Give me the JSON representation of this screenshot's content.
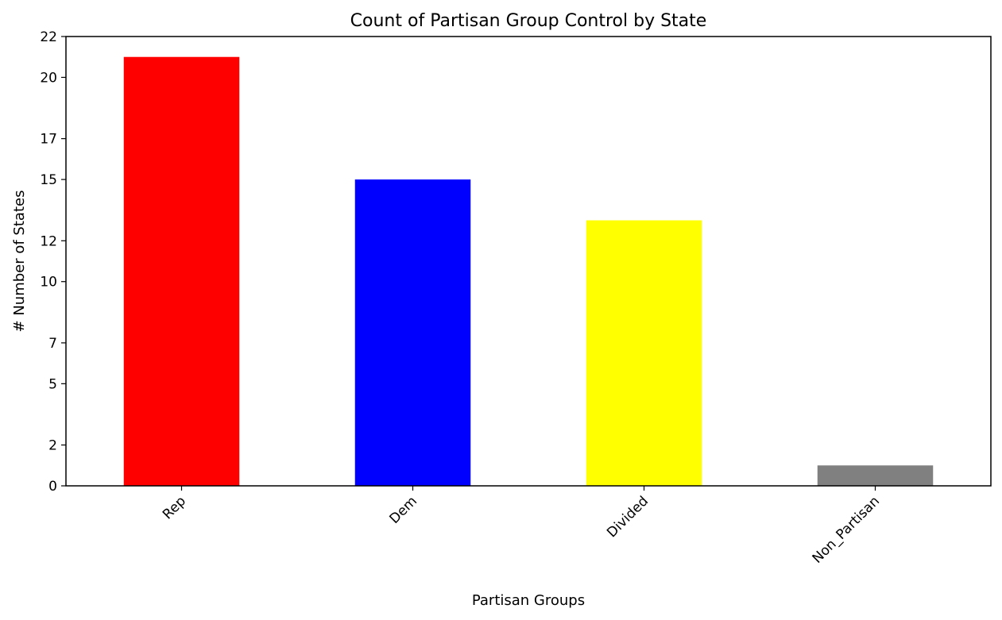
{
  "chart_data": {
    "type": "bar",
    "title": "Count of Partisan Group Control by State",
    "xlabel": "Partisan Groups",
    "ylabel": "# Number of States",
    "categories": [
      "Rep",
      "Dem",
      "Divided",
      "Non_Partisan"
    ],
    "values": [
      21,
      15,
      13,
      1
    ],
    "colors": [
      "#ff0000",
      "#0000ff",
      "#ffff00",
      "#808080"
    ],
    "ylim": [
      0,
      22
    ],
    "yticks": [
      0,
      2,
      5,
      7,
      10,
      12,
      15,
      17,
      20,
      22
    ],
    "ytick_labels": [
      "0",
      "2",
      "5",
      "7",
      "10",
      "12",
      "15",
      "17",
      "20",
      "22"
    ],
    "xtick_rotation": 45,
    "grid": false,
    "legend": false
  }
}
